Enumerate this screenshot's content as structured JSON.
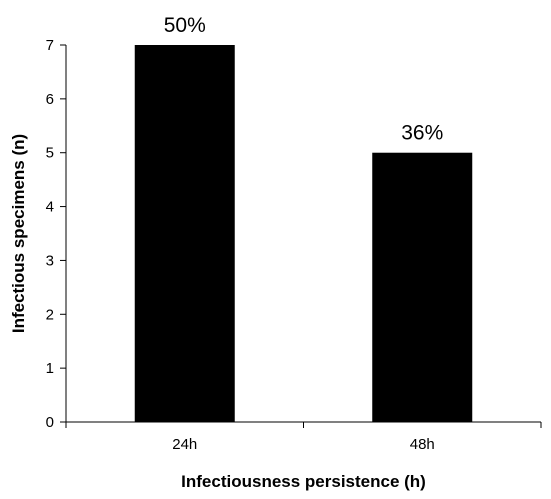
{
  "chart_data": {
    "type": "bar",
    "categories": [
      "24h",
      "48h"
    ],
    "values": [
      7,
      5
    ],
    "data_labels": [
      "50%",
      "36%"
    ],
    "xlabel": "Infectiousness persistence (h)",
    "ylabel": "Infectious specimens (n)",
    "ylim": [
      0,
      7
    ],
    "yticks": [
      0,
      1,
      2,
      3,
      4,
      5,
      6,
      7
    ],
    "grid": false,
    "colors": {
      "bar": "#000000"
    }
  }
}
